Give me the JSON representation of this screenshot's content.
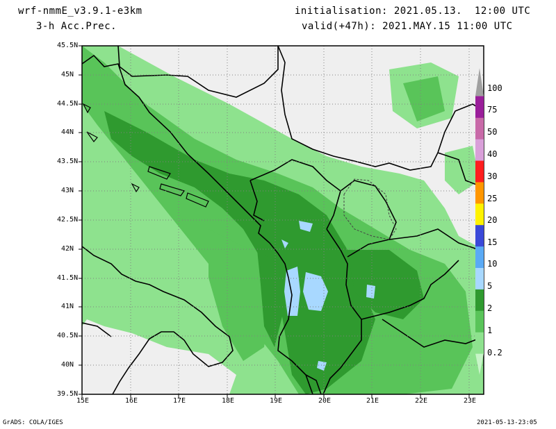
{
  "header": {
    "model": "wrf-nmmE_v3.9.1-e3km",
    "variable": "3-h Acc.Prec.",
    "init": "initialisation: 2021.05.13.  12:00 UTC",
    "valid": "valid(+47h): 2021.MAY.15 11:00 UTC"
  },
  "footer": {
    "credit": "GrADS: COLA/IGES",
    "timestamp": "2021-05-13-23:05"
  },
  "map": {
    "lat_labels": [
      "45.5N",
      "45N",
      "44.5N",
      "44N",
      "43.5N",
      "43N",
      "42.5N",
      "42N",
      "41.5N",
      "41N",
      "40.5N",
      "40N",
      "39.5N"
    ],
    "lon_labels": [
      "15E",
      "16E",
      "17E",
      "18E",
      "19E",
      "20E",
      "21E",
      "22E",
      "23E"
    ],
    "extent": {
      "lon_min": 15,
      "lon_max": 23.3,
      "lat_min": 39.5,
      "lat_max": 45.5
    }
  },
  "colorbar": {
    "levels": [
      "0.2",
      "1",
      "2",
      "5",
      "10",
      "15",
      "20",
      "25",
      "30",
      "40",
      "50",
      "75",
      "100"
    ],
    "colors": [
      "#c8f5c8",
      "#8ee28e",
      "#59c459",
      "#2f9a2f",
      "#a8d8ff",
      "#5aaaf5",
      "#3a48d8",
      "#fff200",
      "#ff9600",
      "#ff1e1e",
      "#d9a0d9",
      "#c86aa8",
      "#9a1e9a",
      "#a0a0a0"
    ]
  }
}
